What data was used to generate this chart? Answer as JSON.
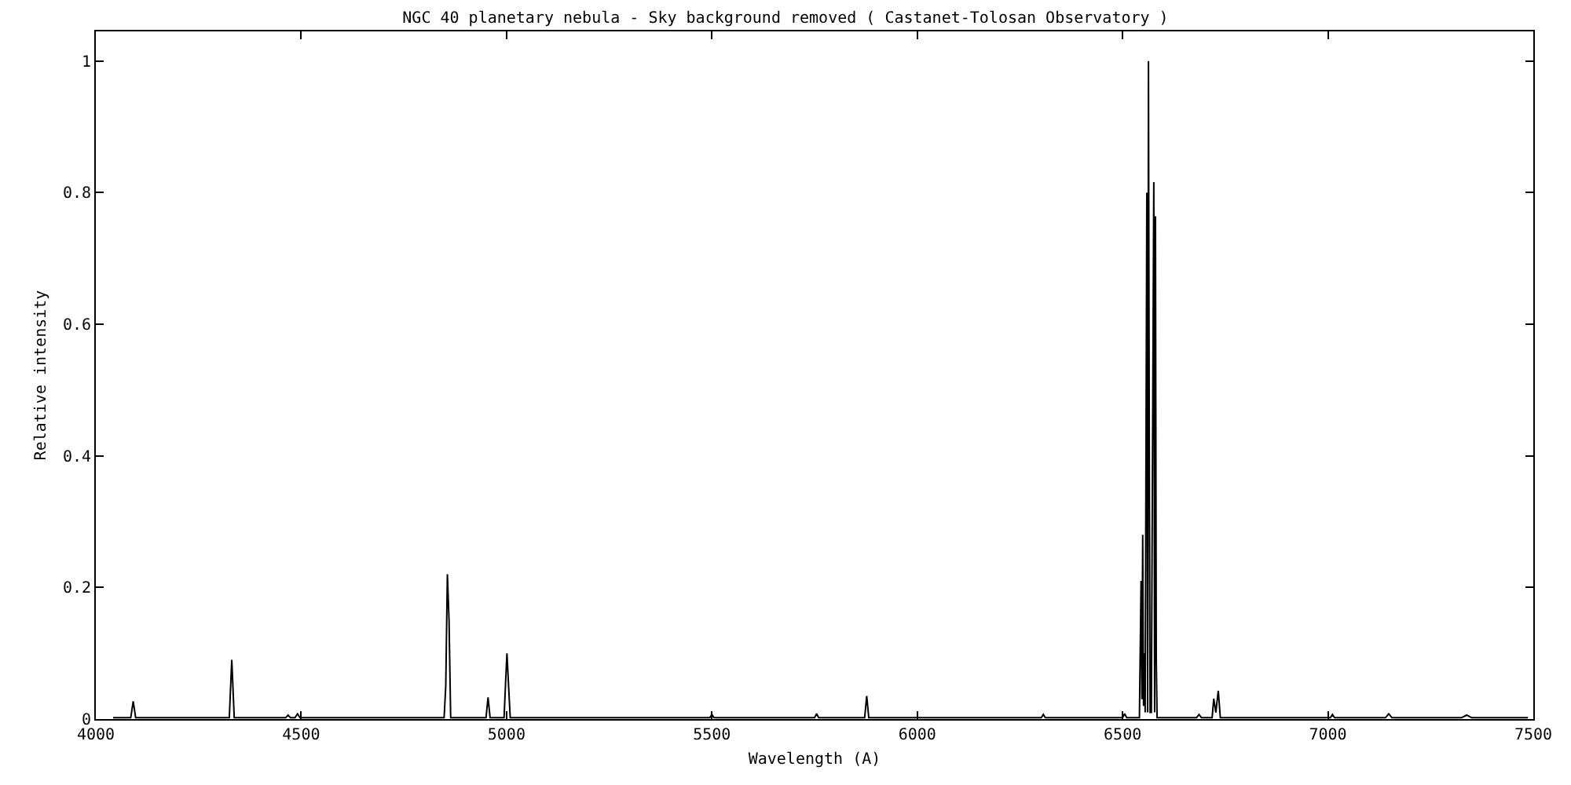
{
  "chart_data": {
    "type": "line",
    "title": "NGC 40 planetary nebula - Sky background removed ( Castanet-Tolosan Observatory )",
    "xlabel": "Wavelength (A)",
    "ylabel": "Relative intensity",
    "x": [
      4042,
      4085,
      4091,
      4097,
      4325,
      4331,
      4337,
      4462,
      4468,
      4474,
      4485,
      4491,
      4497,
      4848,
      4852,
      4856,
      4860,
      4864,
      4950,
      4955,
      4960,
      4994,
      4998,
      5001,
      5005,
      5009,
      5495,
      5500,
      5505,
      5750,
      5755,
      5760,
      5872,
      5877,
      5882,
      6302,
      6307,
      6312,
      6500,
      6505,
      6510,
      6541,
      6545,
      6547,
      6549,
      6551,
      6553,
      6555,
      6559,
      6561,
      6563,
      6565,
      6567,
      6570,
      6573,
      6576,
      6578,
      6580,
      6582,
      6584,
      6588,
      6680,
      6686,
      6692,
      6718,
      6722,
      6727,
      6733,
      6738,
      7006,
      7011,
      7016,
      7140,
      7148,
      7156,
      7325,
      7338,
      7350,
      7487
    ],
    "series": [
      {
        "color": "#000000",
        "values": [
          0.002,
          0.002,
          0.027,
          0.002,
          0.002,
          0.09,
          0.002,
          0.002,
          0.006,
          0.002,
          0.002,
          0.008,
          0.002,
          0.002,
          0.05,
          0.22,
          0.15,
          0.002,
          0.002,
          0.033,
          0.002,
          0.002,
          0.06,
          0.1,
          0.05,
          0.002,
          0.002,
          0.007,
          0.002,
          0.002,
          0.008,
          0.002,
          0.002,
          0.035,
          0.002,
          0.002,
          0.007,
          0.002,
          0.002,
          0.008,
          0.002,
          0.002,
          0.21,
          0.03,
          0.28,
          0.02,
          0.1,
          0.01,
          0.8,
          0.01,
          1.0,
          0.42,
          0.01,
          0.01,
          0.42,
          0.816,
          0.01,
          0.764,
          0.09,
          0.002,
          0.002,
          0.002,
          0.007,
          0.002,
          0.002,
          0.031,
          0.01,
          0.043,
          0.002,
          0.002,
          0.007,
          0.002,
          0.002,
          0.008,
          0.002,
          0.002,
          0.006,
          0.002,
          0.002
        ]
      }
    ],
    "xlim": [
      4000,
      7500
    ],
    "ylim": [
      0,
      1.045
    ],
    "xticks": [
      4000,
      4500,
      5000,
      5500,
      6000,
      6500,
      7000,
      7500
    ],
    "yticks": [
      0,
      0.2,
      0.4,
      0.6,
      0.8,
      1
    ],
    "marker": "none",
    "line_style": "solid"
  }
}
